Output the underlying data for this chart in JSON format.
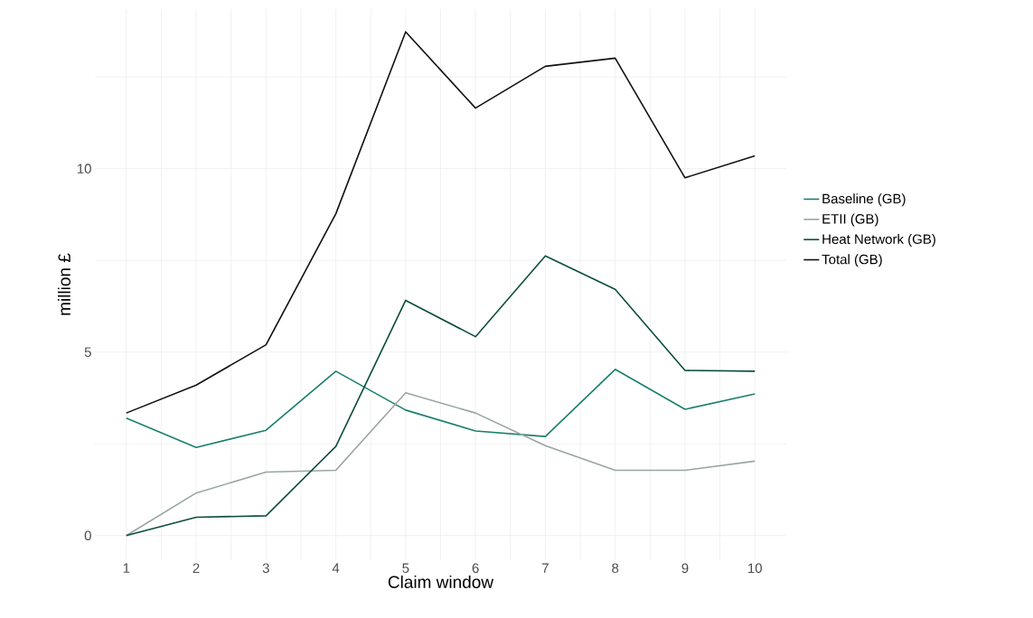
{
  "chart_data": {
    "type": "line",
    "xlabel": "Claim window",
    "ylabel": "million £",
    "x": [
      1,
      2,
      3,
      4,
      5,
      6,
      7,
      8,
      9,
      10
    ],
    "series": [
      {
        "name": "Baseline (GB)",
        "color": "#1a7f6e",
        "values": [
          3.2,
          2.4,
          2.87,
          4.48,
          3.42,
          2.85,
          2.7,
          4.53,
          3.44,
          3.86
        ]
      },
      {
        "name": "ETII (GB)",
        "color": "#9aa5a3",
        "values": [
          0,
          1.16,
          1.73,
          1.78,
          3.89,
          3.34,
          2.45,
          1.78,
          1.78,
          2.03
        ]
      },
      {
        "name": "Heat Network (GB)",
        "color": "#0b4d3f",
        "values": [
          0,
          0.5,
          0.54,
          2.43,
          6.41,
          5.42,
          7.62,
          6.71,
          4.5,
          4.48
        ]
      },
      {
        "name": "Total (GB)",
        "color": "#111111",
        "values": [
          3.34,
          4.1,
          5.2,
          8.77,
          13.73,
          11.65,
          12.79,
          13.01,
          9.75,
          10.35
        ]
      }
    ],
    "xlim": [
      0.55,
      10.45
    ],
    "ylim": [
      -0.67,
      14.35
    ],
    "xticks": [
      1,
      {
        "value": 1.5,
        "label": null
      },
      2,
      {
        "value": 2.5,
        "label": null
      },
      3,
      {
        "value": 3.5,
        "label": null
      },
      4,
      {
        "value": 4.5,
        "label": null
      },
      5,
      {
        "value": 5.5,
        "label": null
      },
      6,
      {
        "value": 6.5,
        "label": null
      },
      7,
      {
        "value": 7.5,
        "label": null
      },
      8,
      {
        "value": 8.5,
        "label": null
      },
      9,
      {
        "value": 9.5,
        "label": null
      },
      10
    ],
    "yticks": [
      0,
      {
        "value": 2.5,
        "label": null
      },
      5,
      {
        "value": 7.5,
        "label": null
      },
      10,
      {
        "value": 12.5,
        "label": null
      }
    ],
    "grid": true,
    "legend": "right",
    "marker": "none",
    "line_style": "solid"
  }
}
